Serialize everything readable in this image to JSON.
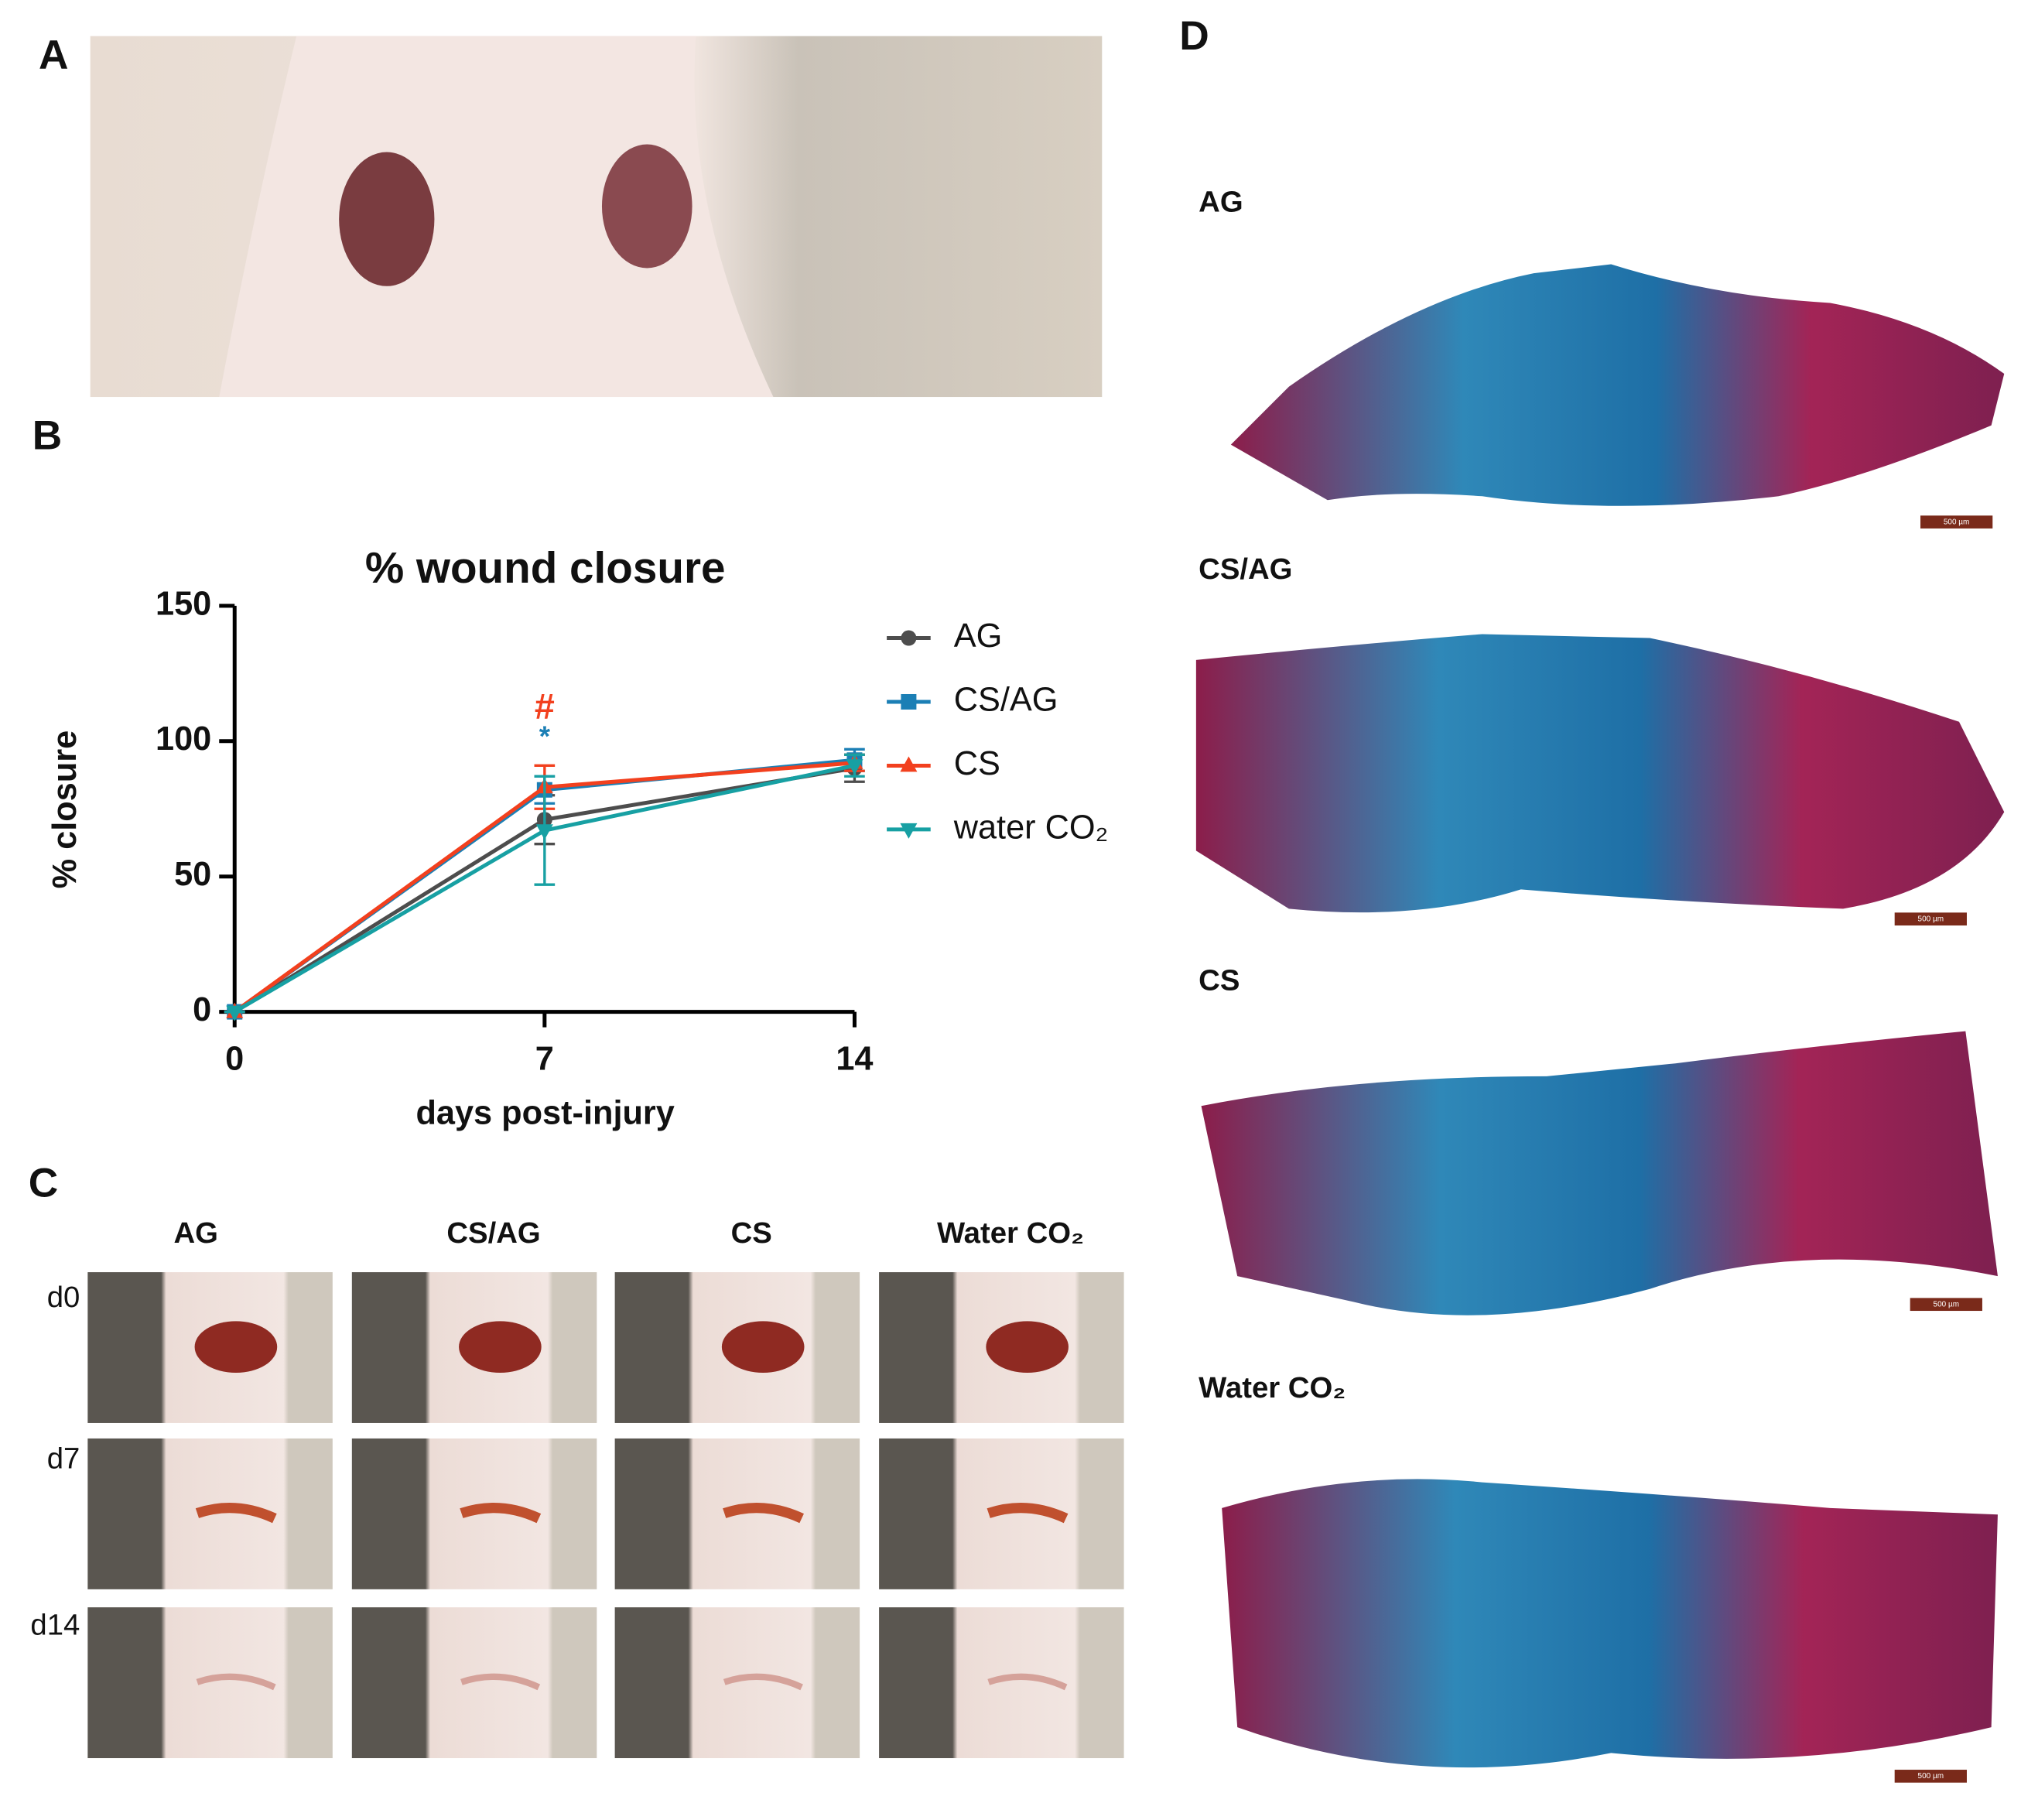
{
  "panel_labels": [
    "A",
    "B",
    "C",
    "D"
  ],
  "chart_data": {
    "type": "line",
    "title": "% wound closure",
    "x_label": "days post-injury",
    "y_label": "% closure",
    "x": [
      0,
      7,
      14
    ],
    "xlim": [
      0,
      14
    ],
    "xticks": [
      0,
      7,
      14
    ],
    "ylim": [
      0,
      150
    ],
    "yticks": [
      0,
      50,
      100,
      150
    ],
    "series": [
      {
        "name": "AG",
        "color": "#4d4d4d",
        "marker": "circle",
        "values": [
          0,
          71,
          90
        ],
        "errors": [
          0,
          9,
          5
        ]
      },
      {
        "name": "CS/AG",
        "color": "#1b7fb5",
        "marker": "square",
        "values": [
          0,
          82,
          93
        ],
        "errors": [
          0,
          5,
          4
        ]
      },
      {
        "name": "CS",
        "color": "#f2401e",
        "marker": "triangle-up",
        "values": [
          0,
          83,
          92
        ],
        "errors": [
          0,
          8,
          3
        ]
      },
      {
        "name": "water CO₂",
        "color": "#17a0a3",
        "marker": "triangle-down",
        "values": [
          0,
          67,
          91
        ],
        "errors": [
          0,
          20,
          4
        ]
      }
    ],
    "annotations": [
      {
        "text": "#",
        "color": "#f2401e"
      },
      {
        "text": "*",
        "color": "#1b7fb5"
      }
    ]
  },
  "panel_c": {
    "columns": [
      "AG",
      "CS/AG",
      "CS",
      "Water CO₂"
    ],
    "rows": [
      "d0",
      "d7",
      "d14"
    ]
  },
  "panel_d": {
    "labels": [
      "AG",
      "CS/AG",
      "CS",
      "Water CO₂"
    ],
    "scale_bar": "500 µm"
  }
}
